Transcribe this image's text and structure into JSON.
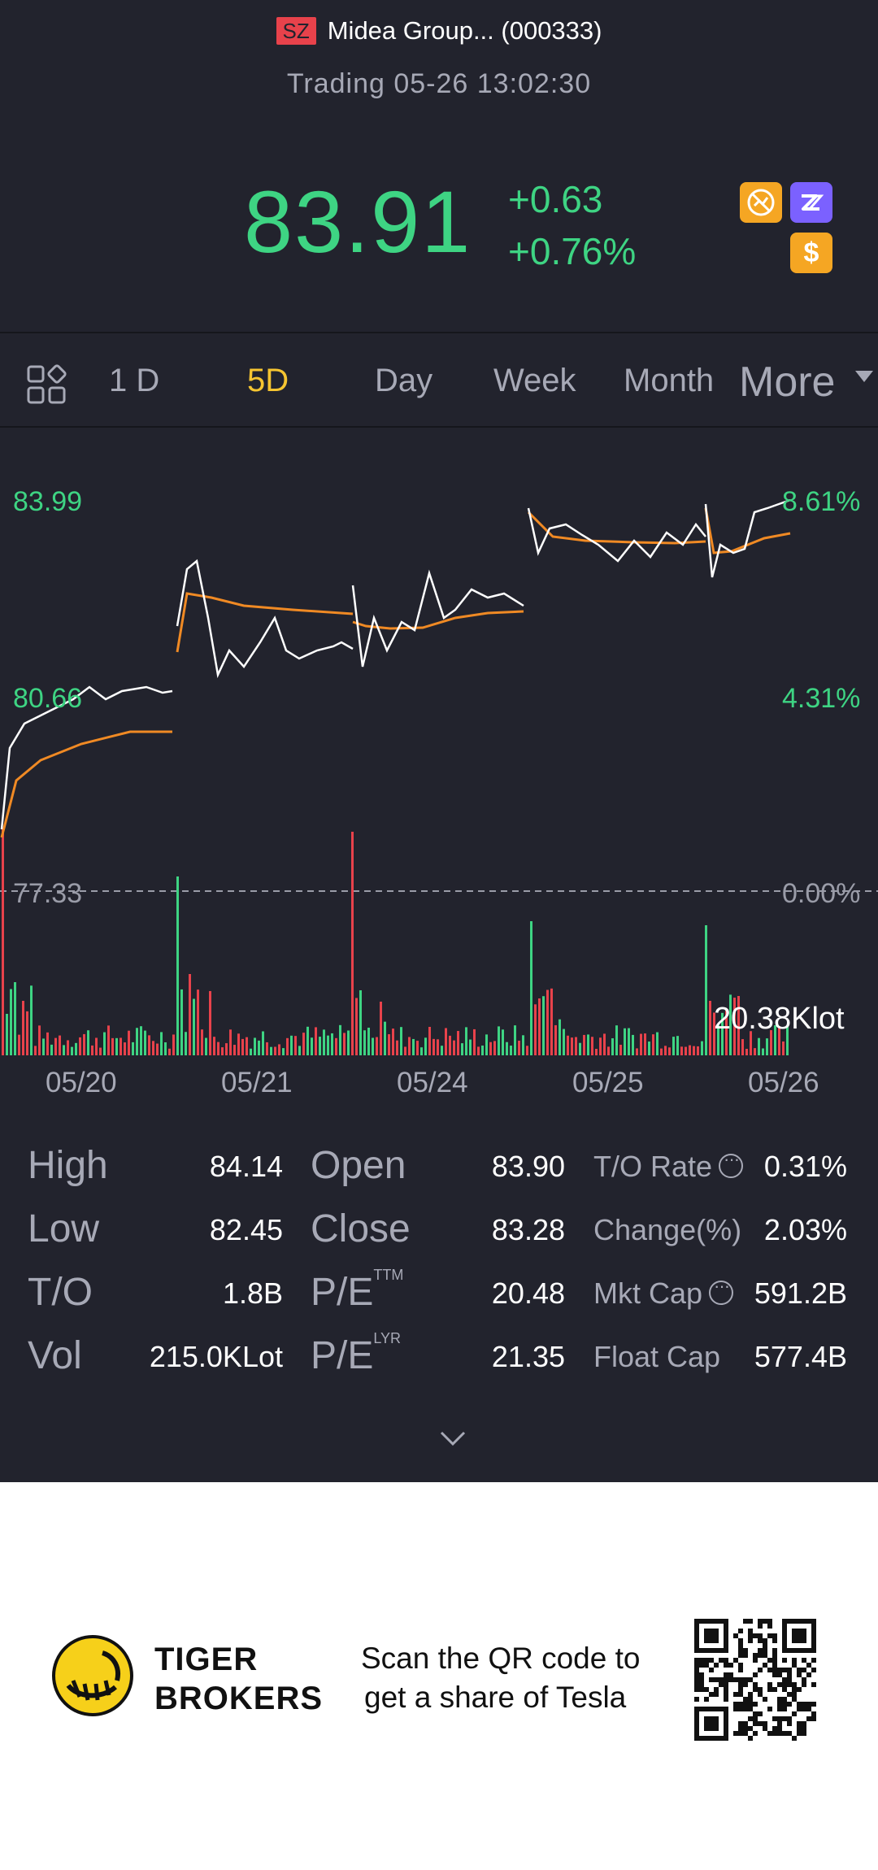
{
  "header": {
    "exchange": "SZ",
    "name": "Midea Group... (000333)",
    "status": "Trading 05-26 13:02:30"
  },
  "quote": {
    "price": "83.91",
    "change": "+0.63",
    "change_pct": "+0.76%"
  },
  "badges": [
    "no-short-icon",
    "zz-icon",
    "dollar-icon"
  ],
  "tabs": {
    "items": [
      "1 D",
      "5D",
      "Day",
      "Week",
      "Month"
    ],
    "active": "5D",
    "more": "More"
  },
  "chart": {
    "y_left": [
      "83.99",
      "80.66",
      "77.33"
    ],
    "y_right": [
      "8.61%",
      "4.31%",
      "0.00%"
    ],
    "volume_label": "20.38Klot",
    "x_labels": [
      "05/20",
      "05/21",
      "05/24",
      "05/25",
      "05/26"
    ]
  },
  "chart_data": {
    "type": "line",
    "x": [
      "05/20",
      "05/21",
      "05/24",
      "05/25",
      "05/26"
    ],
    "ylim": [
      77.33,
      83.99
    ],
    "baseline": 77.33,
    "volume_label": "20.38Klot"
  },
  "stats": {
    "col1": [
      {
        "label": "High",
        "value": "84.14"
      },
      {
        "label": "Low",
        "value": "82.45"
      },
      {
        "label": "T/O",
        "value": "1.8B"
      },
      {
        "label": "Vol",
        "value": "215.0KLot"
      }
    ],
    "col2": [
      {
        "label": "Open",
        "value": "83.90",
        "sup": ""
      },
      {
        "label": "Close",
        "value": "83.28",
        "sup": ""
      },
      {
        "label": "P/E",
        "value": "20.48",
        "sup": "TTM"
      },
      {
        "label": "P/E",
        "value": "21.35",
        "sup": "LYR"
      }
    ],
    "col3": [
      {
        "label": "T/O Rate",
        "value": "0.31%"
      },
      {
        "label": "Change(%)",
        "value": "2.03%"
      },
      {
        "label": "Mkt Cap",
        "value": "591.2B"
      },
      {
        "label": "Float Cap",
        "value": "577.4B"
      }
    ]
  },
  "footer": {
    "brand_line1": "TIGER",
    "brand_line2": "BROKERS",
    "promo_line1": "Scan the QR code to",
    "promo_line2": "get a share of Tesla"
  },
  "colors": {
    "up": "#3ed483",
    "down": "#e8424b",
    "accent": "#f6c531",
    "avg": "#f08a24"
  }
}
